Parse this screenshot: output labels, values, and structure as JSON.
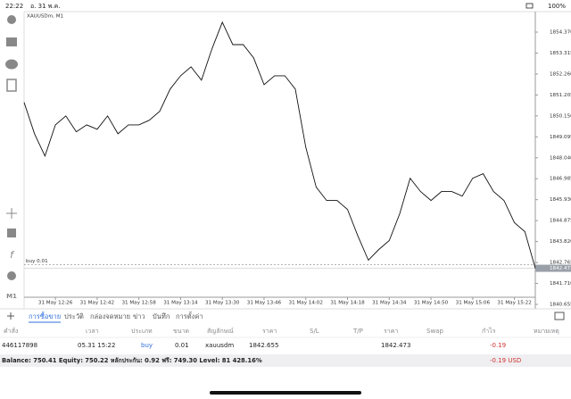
{
  "status_bar": {
    "time": "22:22",
    "date": "อ. 31 พ.ค.",
    "battery": "100%"
  },
  "toolbar": {
    "timeframe": "M1"
  },
  "chart_data": {
    "type": "line",
    "title": "XAUUSDm, M1",
    "color": "#111111",
    "categories": [
      null,
      null,
      null,
      "31 May 12:26",
      null,
      null,
      null,
      "31 May 12:42",
      null,
      null,
      null,
      "31 May 12:58",
      null,
      null,
      null,
      "31 May 13:14",
      null,
      null,
      null,
      "31 May 13:30",
      null,
      null,
      null,
      "31 May 13:46",
      null,
      null,
      null,
      "31 May 14:02",
      null,
      null,
      null,
      "31 May 14:18",
      null,
      null,
      null,
      "31 May 14:34",
      null,
      null,
      null,
      "31 May 14:50",
      null,
      null,
      null,
      "31 May 15:06",
      null,
      null,
      null,
      "31 May 15:22",
      null,
      null
    ],
    "values": [
      1850.83,
      1849.25,
      1848.13,
      1849.7,
      1850.15,
      1849.35,
      1849.7,
      1849.48,
      1850.15,
      1849.25,
      1849.7,
      1849.7,
      1849.93,
      1850.38,
      1851.5,
      1852.17,
      1852.62,
      1851.95,
      1853.52,
      1854.87,
      1853.74,
      1853.74,
      1853.07,
      1851.72,
      1852.17,
      1852.17,
      1851.5,
      1848.58,
      1846.56,
      1845.89,
      1845.89,
      1845.44,
      1844.09,
      1842.88,
      1843.42,
      1843.87,
      1845.22,
      1847.01,
      1846.34,
      1845.89,
      1846.34,
      1846.34,
      1846.11,
      1847.01,
      1847.24,
      1846.34,
      1845.89,
      1844.77,
      1844.32,
      1842.47
    ],
    "ylim": [
      1840.475,
      1855.36
    ],
    "yticks": [
      {
        "value": 1854.37,
        "label": "1854.370"
      },
      1853.315,
      {
        "value": 1852.26,
        "label": "1852.260"
      },
      1851.205,
      {
        "value": 1850.15,
        "label": "1850.150"
      },
      1849.095,
      {
        "value": 1848.04,
        "label": "1848.040"
      },
      1846.985,
      {
        "value": 1845.93,
        "label": "1845.930"
      },
      1844.875,
      {
        "value": 1843.82,
        "label": "1843.820"
      },
      1842.765,
      {
        "value": 1841.71,
        "label": "1841.710"
      },
      1840.655
    ],
    "buy_line": {
      "label": "buy 0.01",
      "value": 1842.655
    },
    "last_price": 1842.473
  },
  "terminal": {
    "tabs": [
      "การซื้อขาย",
      "ประวัติ",
      "กล่องจดหมาย",
      "ข่าว",
      "บันทึก",
      "การตั้งค่า"
    ],
    "columns": [
      "คำสั่ง",
      "เวลา",
      "ประเภท",
      "ขนาด",
      "สัญลักษณ์",
      "ราคา",
      "S/L",
      "T/P",
      "ราคา",
      "Swap",
      "กำไร",
      "หมายเหตุ"
    ],
    "position": {
      "order": "446117898",
      "time": "05.31 15:22",
      "type": "buy",
      "size": "0.01",
      "symbol": "xauusdm",
      "price": "1842.655",
      "current_price": "1842.473",
      "profit": "-0.19"
    },
    "balance_line": "Balance: 750.41  Equity: 750.22  หลักประกัน: 0.92  ฟรี: 749.30  Level: 81 428.16%",
    "total_profit": "-0.19 USD"
  }
}
